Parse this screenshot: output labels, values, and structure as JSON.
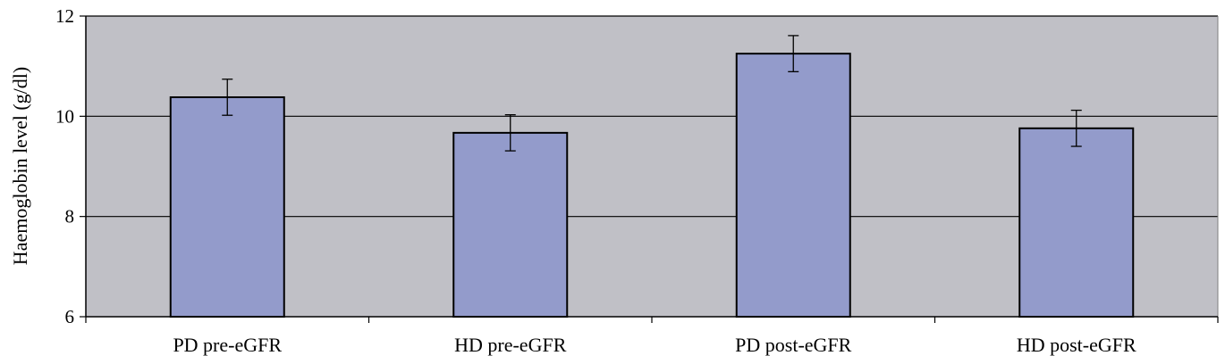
{
  "chart_data": {
    "type": "bar",
    "title": "",
    "xlabel": "",
    "ylabel": "Haemoglobin level (g/dl)",
    "categories": [
      "PD pre-eGFR",
      "HD pre-eGFR",
      "PD post-eGFR",
      "HD post-eGFR"
    ],
    "values": [
      10.38,
      9.67,
      11.25,
      9.76
    ],
    "error_low": [
      10.02,
      9.31,
      10.89,
      9.4
    ],
    "error_high": [
      10.74,
      10.03,
      11.61,
      10.12
    ],
    "ylim": [
      6,
      12
    ],
    "yticks": [
      6,
      8,
      10,
      12
    ],
    "ytick_labels": [
      "6",
      "8",
      "10",
      "12"
    ],
    "grid": true,
    "colors": {
      "plot_background": "#c0c0c6",
      "bar_fill": "#939bcb",
      "bar_stroke": "#000000",
      "gridline": "#000000"
    }
  }
}
